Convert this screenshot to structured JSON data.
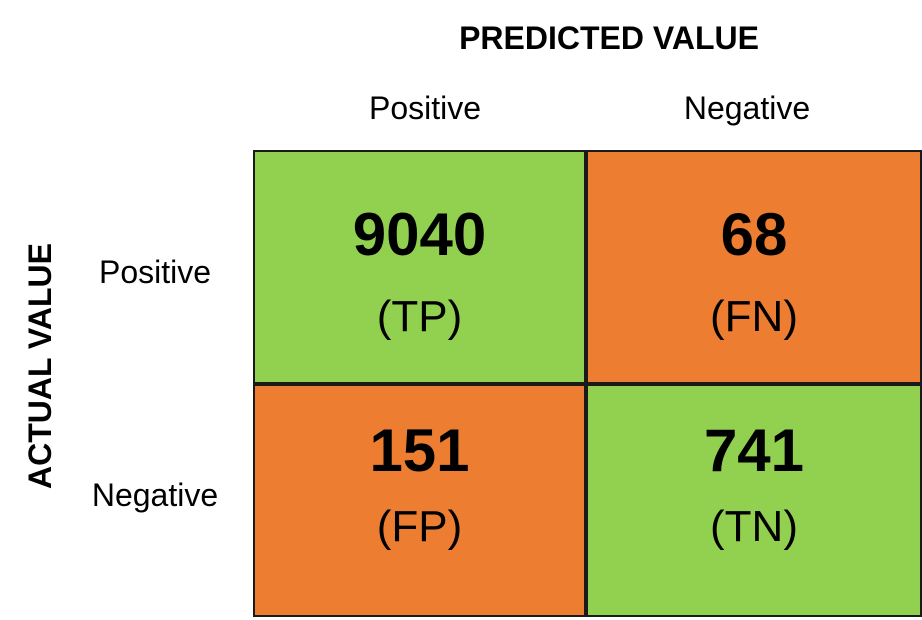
{
  "predicted_title": "PREDICTED VALUE",
  "actual_title": "ACTUAL VALUE",
  "columns": [
    "Positive",
    "Negative"
  ],
  "rows": [
    "Positive",
    "Negative"
  ],
  "cells": [
    [
      {
        "value": "9040",
        "abbr": "(TP)",
        "color": "#92d050"
      },
      {
        "value": "68",
        "abbr": "(FN)",
        "color": "#ed7d31"
      }
    ],
    [
      {
        "value": "151",
        "abbr": "(FP)",
        "color": "#ed7d31"
      },
      {
        "value": "741",
        "abbr": "(TN)",
        "color": "#92d050"
      }
    ]
  ]
}
